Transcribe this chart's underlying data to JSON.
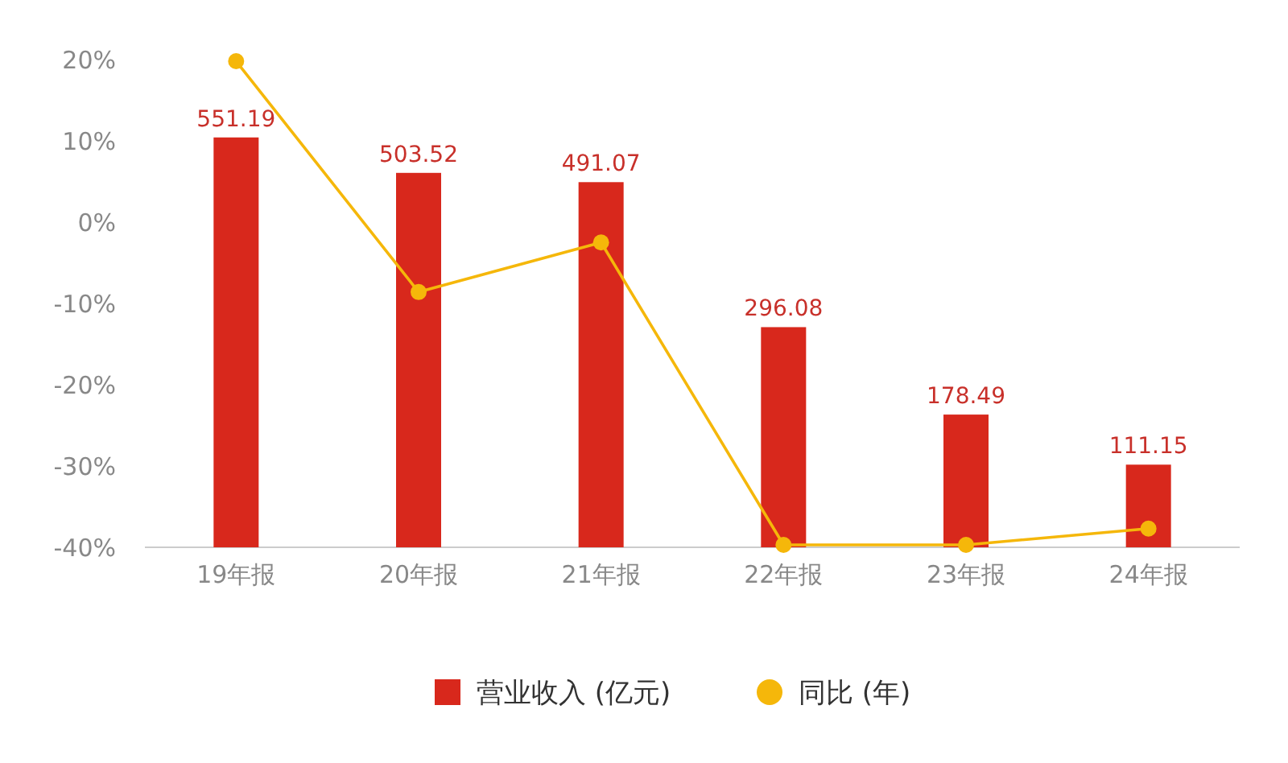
{
  "chart_data": {
    "type": "bar",
    "categories": [
      "19年报",
      "20年报",
      "21年报",
      "22年报",
      "23年报",
      "24年报"
    ],
    "series": [
      {
        "name": "营业收入 (亿元)",
        "axis": "y2",
        "color": "#d8281c",
        "values": [
          551.19,
          503.52,
          491.07,
          296.08,
          178.49,
          111.15
        ],
        "value_labels": [
          "551.19",
          "503.52",
          "491.07",
          "296.08",
          "178.49",
          "111.15"
        ]
      },
      {
        "name": "同比 (年)",
        "type": "line",
        "axis": "y",
        "color": "#f5b70a",
        "values": [
          19.8,
          -8.6,
          -2.5,
          -39.7,
          -39.7,
          -37.7
        ]
      }
    ],
    "ylim": [
      -40,
      20
    ],
    "yticks": [
      {
        "value": 20,
        "label": "20%"
      },
      {
        "value": 10,
        "label": "10%"
      },
      {
        "value": 0,
        "label": "0%"
      },
      {
        "value": -10,
        "label": "-10%"
      },
      {
        "value": -20,
        "label": "-20%"
      },
      {
        "value": -30,
        "label": "-30%"
      },
      {
        "value": -40,
        "label": "-40%"
      }
    ],
    "tick_labels": "xy",
    "grid": false,
    "legend": "bottom",
    "marker": "circle"
  }
}
